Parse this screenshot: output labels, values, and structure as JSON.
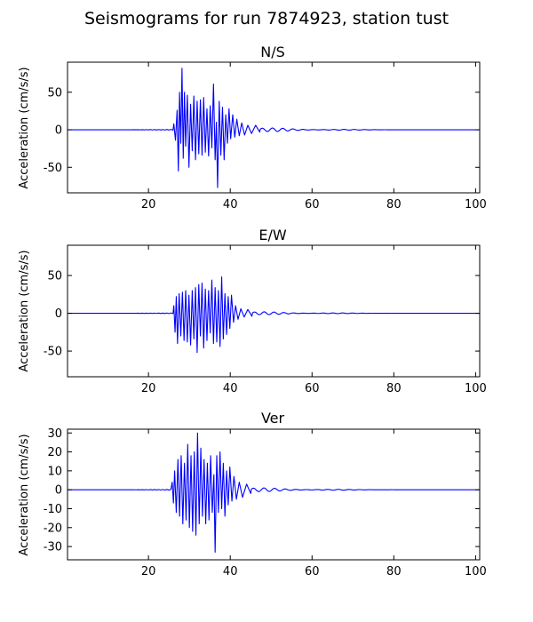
{
  "figure_title": "Seismograms for run 7874923, station tust",
  "chart_data": [
    {
      "type": "line",
      "title": "N/S",
      "xlabel": "",
      "ylabel": "Acceleration (cm/s/s)",
      "xlim": [
        0.2,
        101
      ],
      "ylim": [
        -84,
        90
      ],
      "xticks": [
        20,
        40,
        60,
        80,
        100
      ],
      "yticks": [
        -50,
        0,
        50
      ],
      "color": "#0000ff",
      "grid": false,
      "peaks": [
        [
          26.2,
          8
        ],
        [
          26.6,
          -14
        ],
        [
          27.0,
          26
        ],
        [
          27.3,
          -55
        ],
        [
          27.6,
          50
        ],
        [
          27.9,
          -18
        ],
        [
          28.2,
          82
        ],
        [
          28.5,
          -38
        ],
        [
          28.8,
          50
        ],
        [
          29.1,
          -22
        ],
        [
          29.5,
          46
        ],
        [
          29.9,
          -50
        ],
        [
          30.3,
          34
        ],
        [
          30.7,
          -28
        ],
        [
          31.1,
          45
        ],
        [
          31.5,
          -40
        ],
        [
          31.9,
          38
        ],
        [
          32.3,
          -32
        ],
        [
          32.7,
          40
        ],
        [
          33.1,
          -34
        ],
        [
          33.5,
          43
        ],
        [
          33.9,
          -30
        ],
        [
          34.3,
          28
        ],
        [
          34.7,
          -35
        ],
        [
          35.1,
          32
        ],
        [
          35.5,
          -24
        ],
        [
          35.9,
          61
        ],
        [
          36.3,
          -40
        ],
        [
          36.6,
          10
        ],
        [
          36.9,
          -77
        ],
        [
          37.3,
          38
        ],
        [
          37.7,
          -34
        ],
        [
          38.1,
          30
        ],
        [
          38.5,
          -40
        ],
        [
          38.9,
          20
        ],
        [
          39.3,
          -18
        ],
        [
          39.7,
          28
        ],
        [
          40.1,
          -12
        ],
        [
          40.6,
          20
        ],
        [
          41.1,
          -10
        ],
        [
          41.6,
          14
        ],
        [
          42.2,
          -8
        ],
        [
          42.8,
          9
        ],
        [
          43.5,
          -7
        ],
        [
          44.3,
          6
        ],
        [
          45.2,
          -5
        ],
        [
          46.2,
          6
        ],
        [
          47.2,
          -3
        ]
      ],
      "tail_amplitude": 3.2,
      "tail_period": 2.5
    },
    {
      "type": "line",
      "title": "E/W",
      "xlabel": "",
      "ylabel": "Acceleration (cm/s/s)",
      "xlim": [
        0.2,
        101
      ],
      "ylim": [
        -84,
        90
      ],
      "xticks": [
        20,
        40,
        60,
        80,
        100
      ],
      "yticks": [
        -50,
        0,
        50
      ],
      "color": "#0000ff",
      "grid": false,
      "peaks": [
        [
          26.2,
          10
        ],
        [
          26.5,
          -25
        ],
        [
          26.8,
          22
        ],
        [
          27.1,
          -40
        ],
        [
          27.5,
          26
        ],
        [
          27.9,
          -30
        ],
        [
          28.3,
          28
        ],
        [
          28.7,
          -36
        ],
        [
          29.1,
          30
        ],
        [
          29.5,
          -38
        ],
        [
          29.9,
          24
        ],
        [
          30.3,
          -42
        ],
        [
          30.7,
          30
        ],
        [
          31.1,
          -34
        ],
        [
          31.5,
          34
        ],
        [
          31.9,
          -52
        ],
        [
          32.3,
          38
        ],
        [
          32.7,
          -30
        ],
        [
          33.1,
          40
        ],
        [
          33.5,
          -46
        ],
        [
          33.9,
          32
        ],
        [
          34.3,
          -36
        ],
        [
          34.7,
          30
        ],
        [
          35.1,
          -26
        ],
        [
          35.5,
          44
        ],
        [
          35.9,
          -40
        ],
        [
          36.3,
          34
        ],
        [
          36.7,
          -38
        ],
        [
          37.1,
          30
        ],
        [
          37.5,
          -44
        ],
        [
          37.9,
          48
        ],
        [
          38.3,
          -34
        ],
        [
          38.7,
          26
        ],
        [
          39.1,
          -28
        ],
        [
          39.5,
          22
        ],
        [
          39.9,
          -20
        ],
        [
          40.3,
          24
        ],
        [
          40.8,
          -12
        ],
        [
          41.3,
          10
        ],
        [
          41.9,
          -8
        ],
        [
          42.6,
          6
        ],
        [
          43.4,
          -5
        ],
        [
          44.3,
          5
        ],
        [
          45.3,
          -4
        ]
      ],
      "tail_amplitude": 2.6,
      "tail_period": 2.4
    },
    {
      "type": "line",
      "title": "Ver",
      "xlabel": "",
      "ylabel": "Acceleration (cm/s/s)",
      "xlim": [
        0.2,
        101
      ],
      "ylim": [
        -37,
        32
      ],
      "xticks": [
        20,
        40,
        60,
        80,
        100
      ],
      "yticks": [
        -30,
        -20,
        -10,
        0,
        10,
        20,
        30
      ],
      "color": "#0000ff",
      "grid": false,
      "peaks": [
        [
          25.8,
          4
        ],
        [
          26.1,
          -7
        ],
        [
          26.4,
          10
        ],
        [
          26.8,
          -12
        ],
        [
          27.2,
          16
        ],
        [
          27.6,
          -14
        ],
        [
          28.0,
          18
        ],
        [
          28.4,
          -18
        ],
        [
          28.8,
          14
        ],
        [
          29.2,
          -16
        ],
        [
          29.6,
          24
        ],
        [
          30.0,
          -20
        ],
        [
          30.4,
          18
        ],
        [
          30.8,
          -22
        ],
        [
          31.2,
          20
        ],
        [
          31.6,
          -24
        ],
        [
          32.0,
          30
        ],
        [
          32.4,
          -18
        ],
        [
          32.8,
          22
        ],
        [
          33.2,
          -14
        ],
        [
          33.6,
          16
        ],
        [
          34.0,
          -18
        ],
        [
          34.4,
          14
        ],
        [
          34.8,
          -16
        ],
        [
          35.2,
          18
        ],
        [
          35.6,
          -12
        ],
        [
          36.0,
          8
        ],
        [
          36.3,
          -33
        ],
        [
          36.7,
          18
        ],
        [
          37.1,
          -12
        ],
        [
          37.5,
          20
        ],
        [
          37.9,
          -10
        ],
        [
          38.3,
          14
        ],
        [
          38.7,
          -14
        ],
        [
          39.1,
          10
        ],
        [
          39.5,
          -8
        ],
        [
          39.9,
          12
        ],
        [
          40.4,
          -6
        ],
        [
          40.9,
          7
        ],
        [
          41.5,
          -5
        ],
        [
          42.2,
          4
        ],
        [
          43.0,
          -4
        ],
        [
          44.0,
          3
        ],
        [
          45.0,
          -2
        ]
      ],
      "tail_amplitude": 1.3,
      "tail_period": 2.6
    }
  ]
}
